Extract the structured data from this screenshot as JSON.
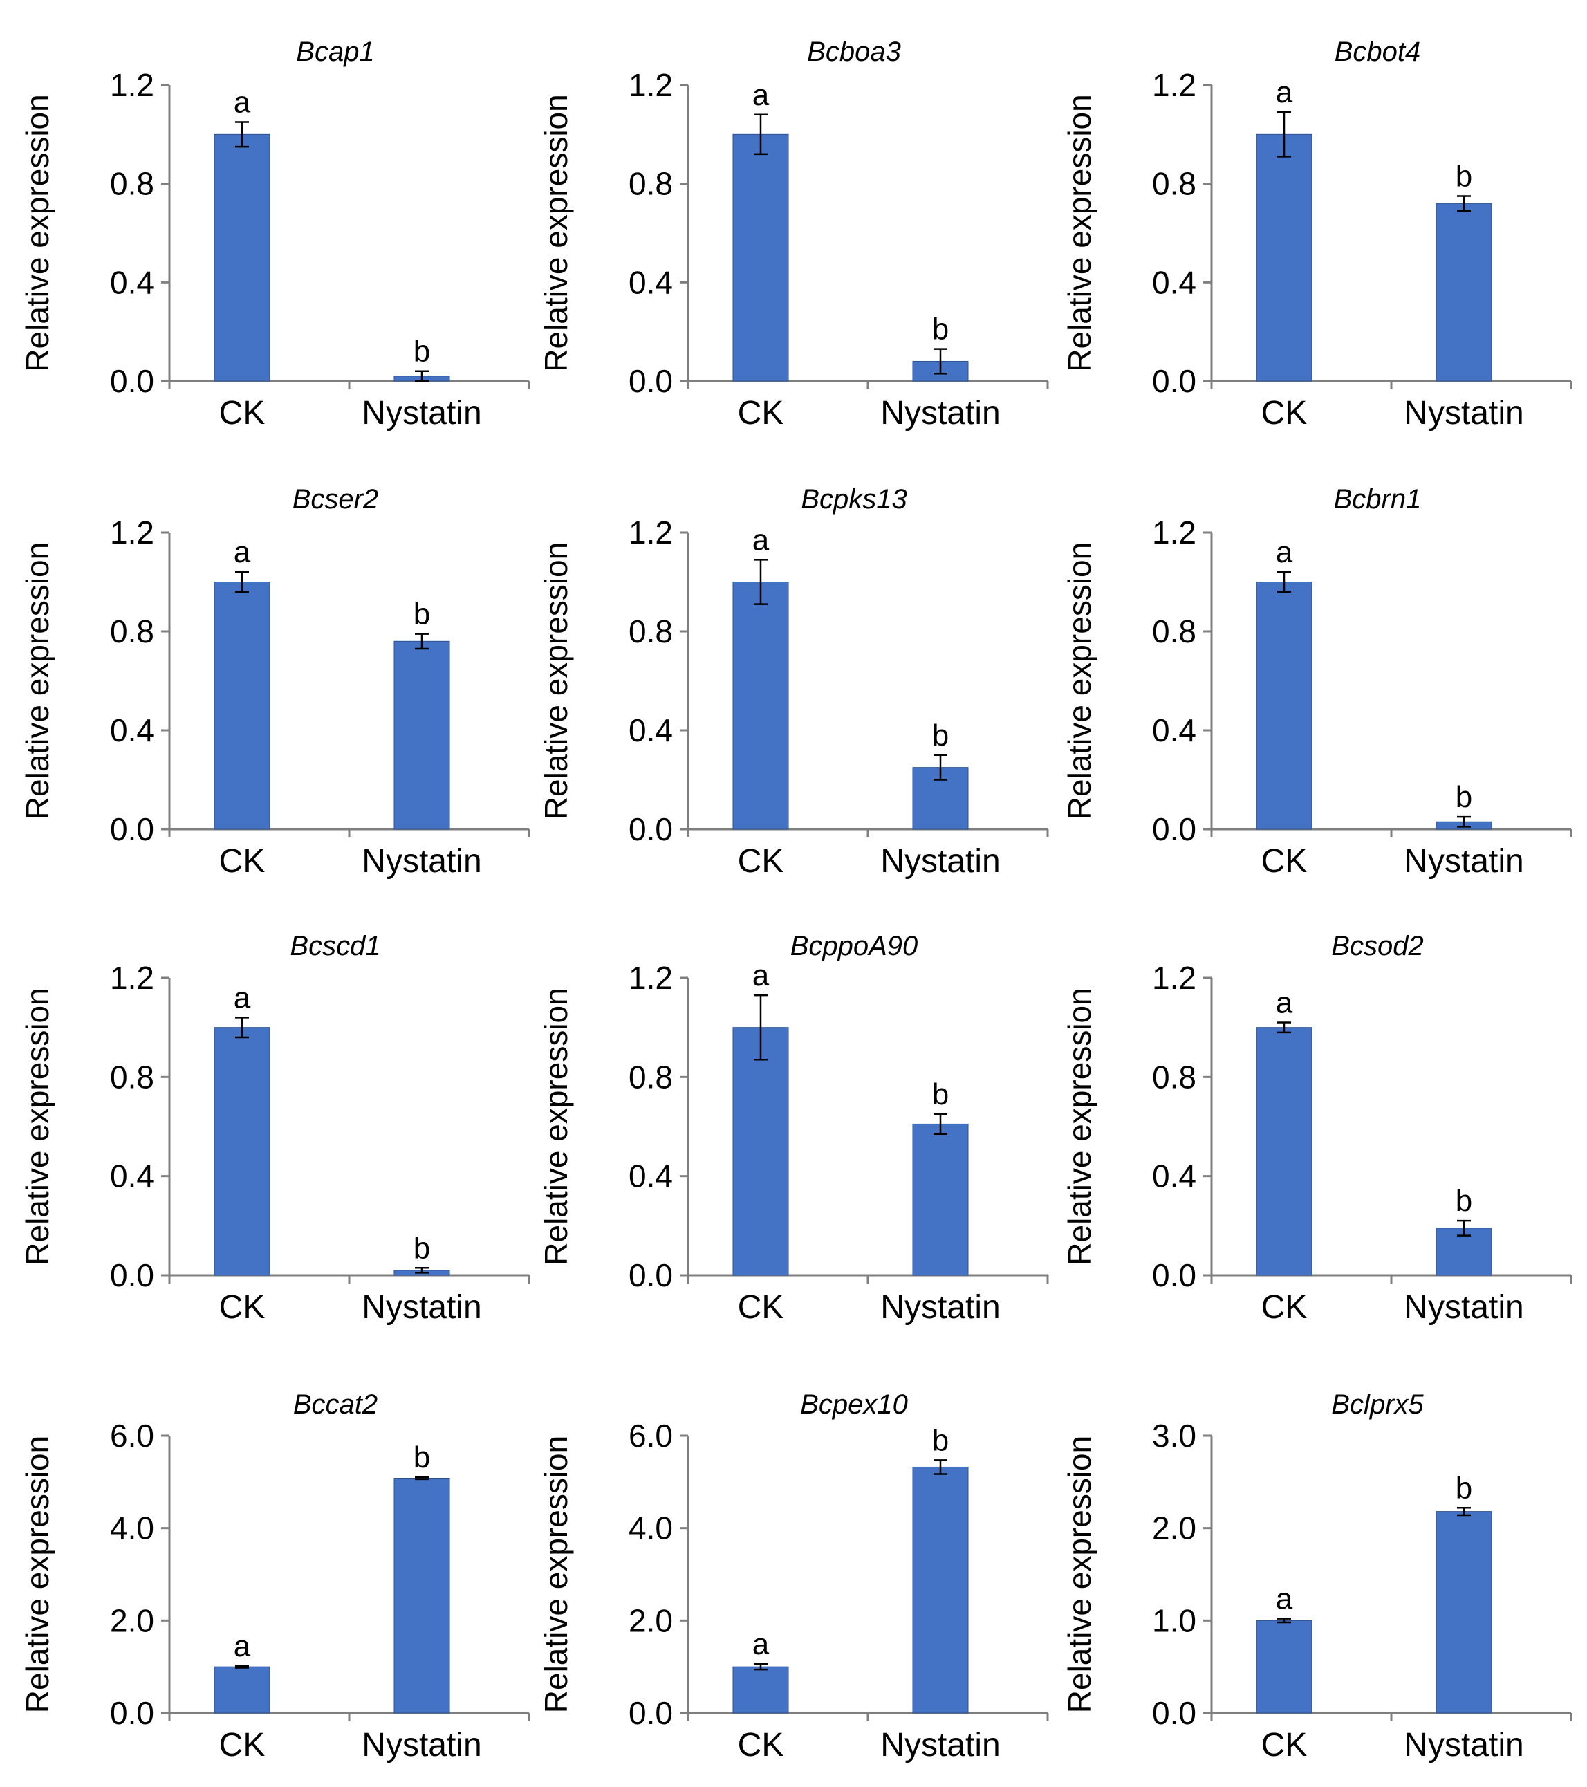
{
  "chart_data": [
    {
      "type": "bar",
      "title": "Bcap1",
      "ylabel": "Relative expression",
      "categories": [
        "CK",
        "Nystatin"
      ],
      "values": [
        1.0,
        0.02
      ],
      "errors": [
        0.05,
        0.02
      ],
      "significance": [
        "a",
        "b"
      ],
      "ylim": [
        0,
        1.2
      ],
      "yticks": [
        "0.0",
        "0.4",
        "0.8",
        "1.2"
      ],
      "color": "#4472C4"
    },
    {
      "type": "bar",
      "title": "Bcboa3",
      "ylabel": "Relative expression",
      "categories": [
        "CK",
        "Nystatin"
      ],
      "values": [
        1.0,
        0.08
      ],
      "errors": [
        0.08,
        0.05
      ],
      "significance": [
        "a",
        "b"
      ],
      "ylim": [
        0,
        1.2
      ],
      "yticks": [
        "0.0",
        "0.4",
        "0.8",
        "1.2"
      ],
      "color": "#4472C4"
    },
    {
      "type": "bar",
      "title": "Bcbot4",
      "ylabel": "Relative expression",
      "categories": [
        "CK",
        "Nystatin"
      ],
      "values": [
        1.0,
        0.72
      ],
      "errors": [
        0.09,
        0.03
      ],
      "significance": [
        "a",
        "b"
      ],
      "ylim": [
        0,
        1.2
      ],
      "yticks": [
        "0.0",
        "0.4",
        "0.8",
        "1.2"
      ],
      "color": "#4472C4"
    },
    {
      "type": "bar",
      "title": "Bcser2",
      "ylabel": "Relative expression",
      "categories": [
        "CK",
        "Nystatin"
      ],
      "values": [
        1.0,
        0.76
      ],
      "errors": [
        0.04,
        0.03
      ],
      "significance": [
        "a",
        "b"
      ],
      "ylim": [
        0,
        1.2
      ],
      "yticks": [
        "0.0",
        "0.4",
        "0.8",
        "1.2"
      ],
      "color": "#4472C4"
    },
    {
      "type": "bar",
      "title": "Bcpks13",
      "ylabel": "Relative expression",
      "categories": [
        "CK",
        "Nystatin"
      ],
      "values": [
        1.0,
        0.25
      ],
      "errors": [
        0.09,
        0.05
      ],
      "significance": [
        "a",
        "b"
      ],
      "ylim": [
        0,
        1.2
      ],
      "yticks": [
        "0.0",
        "0.4",
        "0.8",
        "1.2"
      ],
      "color": "#4472C4"
    },
    {
      "type": "bar",
      "title": "Bcbrn1",
      "ylabel": "Relative expression",
      "categories": [
        "CK",
        "Nystatin"
      ],
      "values": [
        1.0,
        0.03
      ],
      "errors": [
        0.04,
        0.02
      ],
      "significance": [
        "a",
        "b"
      ],
      "ylim": [
        0,
        1.2
      ],
      "yticks": [
        "0.0",
        "0.4",
        "0.8",
        "1.2"
      ],
      "color": "#4472C4"
    },
    {
      "type": "bar",
      "title": "Bcscd1",
      "ylabel": "Relative expression",
      "categories": [
        "CK",
        "Nystatin"
      ],
      "values": [
        1.0,
        0.02
      ],
      "errors": [
        0.04,
        0.01
      ],
      "significance": [
        "a",
        "b"
      ],
      "ylim": [
        0,
        1.2
      ],
      "yticks": [
        "0.0",
        "0.4",
        "0.8",
        "1.2"
      ],
      "color": "#4472C4"
    },
    {
      "type": "bar",
      "title": "BcppoA90",
      "ylabel": "Relative expression",
      "categories": [
        "CK",
        "Nystatin"
      ],
      "values": [
        1.0,
        0.61
      ],
      "errors": [
        0.13,
        0.04
      ],
      "significance": [
        "a",
        "b"
      ],
      "ylim": [
        0,
        1.2
      ],
      "yticks": [
        "0.0",
        "0.4",
        "0.8",
        "1.2"
      ],
      "color": "#4472C4"
    },
    {
      "type": "bar",
      "title": "Bcsod2",
      "ylabel": "Relative expression",
      "categories": [
        "CK",
        "Nystatin"
      ],
      "values": [
        1.0,
        0.19
      ],
      "errors": [
        0.02,
        0.03
      ],
      "significance": [
        "a",
        "b"
      ],
      "ylim": [
        0,
        1.2
      ],
      "yticks": [
        "0.0",
        "0.4",
        "0.8",
        "1.2"
      ],
      "color": "#4472C4"
    },
    {
      "type": "bar",
      "title": "Bccat2",
      "ylabel": "Relative expression",
      "categories": [
        "CK",
        "Nystatin"
      ],
      "values": [
        1.0,
        5.08
      ],
      "errors": [
        0.02,
        0.02
      ],
      "significance": [
        "a",
        "b"
      ],
      "ylim": [
        0,
        6.0
      ],
      "yticks": [
        "0.0",
        "2.0",
        "4.0",
        "6.0"
      ],
      "color": "#4472C4"
    },
    {
      "type": "bar",
      "title": "Bcpex10",
      "ylabel": "Relative expression",
      "categories": [
        "CK",
        "Nystatin"
      ],
      "values": [
        1.0,
        5.32
      ],
      "errors": [
        0.06,
        0.15
      ],
      "significance": [
        "a",
        "b"
      ],
      "ylim": [
        0,
        6.0
      ],
      "yticks": [
        "0.0",
        "2.0",
        "4.0",
        "6.0"
      ],
      "color": "#4472C4"
    },
    {
      "type": "bar",
      "title": "Bclprx5",
      "ylabel": "Relative expression",
      "categories": [
        "CK",
        "Nystatin"
      ],
      "values": [
        1.0,
        2.18
      ],
      "errors": [
        0.02,
        0.04
      ],
      "significance": [
        "a",
        "b"
      ],
      "ylim": [
        0,
        3.0
      ],
      "yticks": [
        "0.0",
        "1.0",
        "2.0",
        "3.0"
      ],
      "color": "#4472C4"
    }
  ]
}
